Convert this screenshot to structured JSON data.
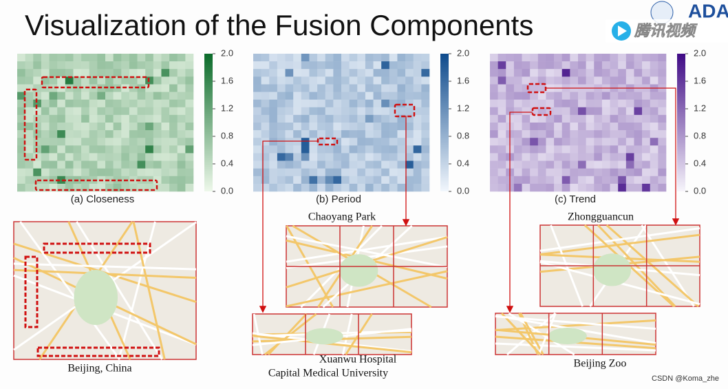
{
  "title": "Visualization of the Fusion Components",
  "logo": "ADA",
  "video_watermark": "腾讯视频",
  "footer": "CSDN @Koma_zhe",
  "heatmaps": [
    {
      "caption": "(a) Closeness",
      "color": "#0b6b2a",
      "light": "#eef8ea",
      "clim": [
        0,
        2
      ],
      "ticks": [
        {
          "value": 2,
          "label": "2.0"
        },
        {
          "value": 1.6,
          "label": "1.6"
        },
        {
          "value": 1.2,
          "label": "1.2"
        },
        {
          "value": 0.8,
          "label": "0.8"
        },
        {
          "value": 0.4,
          "label": "0.4"
        },
        {
          "value": 0,
          "label": "0.0"
        }
      ]
    },
    {
      "caption": "(b) Period",
      "color": "#0d4a8c",
      "light": "#f2f7fd",
      "clim": [
        0,
        2
      ],
      "ticks": [
        {
          "value": 2,
          "label": "2.0"
        },
        {
          "value": 1.6,
          "label": "1.6"
        },
        {
          "value": 1.2,
          "label": "1.2"
        },
        {
          "value": 0.8,
          "label": "0.8"
        },
        {
          "value": 0.4,
          "label": "0.4"
        },
        {
          "value": 0,
          "label": "0.0"
        }
      ]
    },
    {
      "caption": "(c) Trend",
      "color": "#3f0a85",
      "light": "#f7f5fb",
      "clim": [
        0,
        2
      ],
      "ticks": [
        {
          "value": 2,
          "label": "2.0"
        },
        {
          "value": 1.6,
          "label": "1.6"
        },
        {
          "value": 1.2,
          "label": "1.2"
        },
        {
          "value": 0.8,
          "label": "0.8"
        },
        {
          "value": 0.4,
          "label": "0.4"
        },
        {
          "value": 0,
          "label": "0.0"
        }
      ]
    }
  ],
  "maps": [
    {
      "label": "Beijing, China"
    },
    {
      "label": "Chaoyang Park"
    },
    {
      "label": "Xuanwu Hospital",
      "sublabel": "Capital Medical University"
    },
    {
      "label": "Zhongguancun"
    },
    {
      "label": "Beijing Zoo"
    }
  ]
}
